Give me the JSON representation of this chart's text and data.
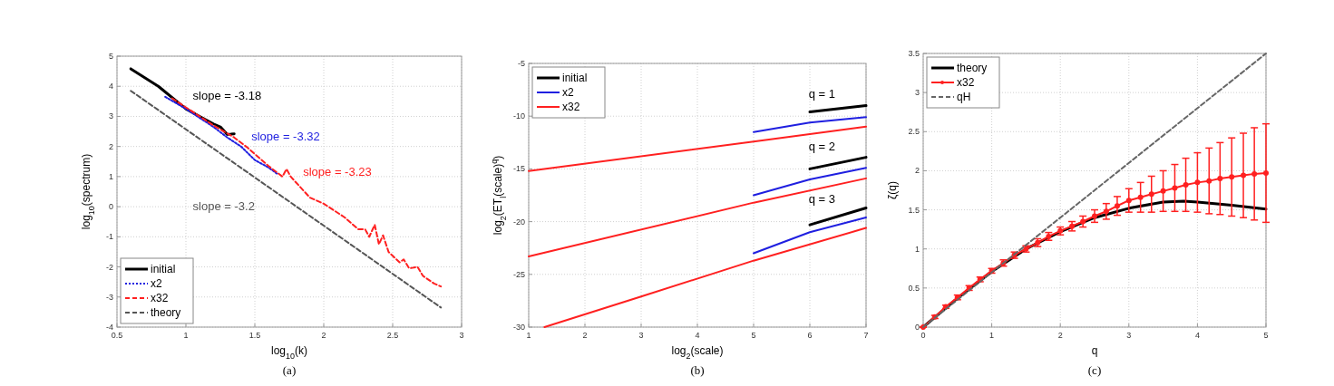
{
  "chart_data": [
    {
      "type": "line",
      "xlabel": "log$_{10}$(k)",
      "ylabel": "log$_{10}$(spectrum)",
      "xlim": [
        0.5,
        3
      ],
      "ylim": [
        -4,
        5
      ],
      "xticks": [
        0.5,
        1,
        1.5,
        2,
        2.5,
        3
      ],
      "yticks": [
        -4,
        -3,
        -2,
        -1,
        0,
        1,
        2,
        3,
        4,
        5
      ],
      "grid": true,
      "legend": "bottom left",
      "series": [
        {
          "name": "initial",
          "color": "#000000",
          "line_style": "solid",
          "x": [
            0.6,
            0.8,
            1.0,
            1.1,
            1.2,
            1.25,
            1.3,
            1.35
          ],
          "values": [
            4.58,
            4.0,
            3.25,
            3.0,
            2.75,
            2.65,
            2.4,
            2.42
          ]
        },
        {
          "name": "x2",
          "color": "#1f1fe0",
          "line_style": "dotted",
          "x": [
            0.85,
            1.0,
            1.2,
            1.3,
            1.4,
            1.5,
            1.6,
            1.66
          ],
          "values": [
            3.65,
            3.25,
            2.65,
            2.3,
            2.0,
            1.55,
            1.3,
            1.1
          ]
        },
        {
          "name": "x32",
          "color": "#ff2020",
          "line_style": "dashed",
          "x": [
            0.9,
            1.0,
            1.2,
            1.35,
            1.45,
            1.5,
            1.6,
            1.7,
            1.73,
            1.76,
            1.85,
            1.9,
            2.0,
            2.1,
            2.15,
            2.2,
            2.25,
            2.3,
            2.33,
            2.37,
            2.4,
            2.43,
            2.47,
            2.55,
            2.58,
            2.62,
            2.68,
            2.72,
            2.8,
            2.85
          ],
          "values": [
            3.6,
            3.3,
            2.7,
            2.3,
            1.95,
            1.75,
            1.35,
            1.0,
            1.25,
            1.0,
            0.55,
            0.3,
            0.1,
            -0.2,
            -0.35,
            -0.55,
            -0.75,
            -0.75,
            -1.0,
            -0.6,
            -1.25,
            -0.95,
            -1.5,
            -1.85,
            -1.75,
            -2.05,
            -2.0,
            -2.3,
            -2.55,
            -2.65
          ]
        },
        {
          "name": "theory",
          "color": "#555555",
          "line_style": "dashed",
          "x": [
            0.6,
            2.85
          ],
          "values": [
            3.85,
            -3.35
          ]
        }
      ],
      "annotations": [
        "slope = -3.18",
        "slope = -3.32",
        "slope = -3.23",
        "slope = -3.2",
        "(a)"
      ]
    },
    {
      "type": "line",
      "xlabel": "log$_{2}$(scale)",
      "ylabel": "log$_{2}$(ET$_{l}$(scale)$^{q}$)",
      "xlim": [
        1,
        7
      ],
      "ylim": [
        -30,
        -5
      ],
      "xticks": [
        1,
        2,
        3,
        4,
        5,
        6,
        7
      ],
      "yticks": [
        -30,
        -25,
        -20,
        -15,
        -10,
        -5
      ],
      "grid": true,
      "legend": "top left",
      "series": [
        {
          "name": "initial",
          "color": "#000000",
          "x": [
            6,
            7
          ],
          "values": [
            -9.6,
            -9.0
          ]
        },
        {
          "color": "#000000",
          "x": [
            6,
            7
          ],
          "values": [
            -15.0,
            -13.9
          ]
        },
        {
          "color": "#000000",
          "x": [
            6,
            7
          ],
          "values": [
            -20.3,
            -18.7
          ]
        },
        {
          "name": "x2",
          "color": "#1f1fe0",
          "x": [
            5,
            6,
            7
          ],
          "values": [
            -11.5,
            -10.6,
            -10.1
          ]
        },
        {
          "color": "#1f1fe0",
          "x": [
            5,
            6,
            7
          ],
          "values": [
            -17.5,
            -16.0,
            -14.9
          ]
        },
        {
          "color": "#1f1fe0",
          "x": [
            5,
            6,
            7
          ],
          "values": [
            -23.0,
            -21.0,
            -19.6
          ]
        },
        {
          "name": "x32",
          "color": "#ff2020",
          "x": [
            1,
            5,
            7
          ],
          "values": [
            -15.2,
            -12.4,
            -11.0
          ]
        },
        {
          "color": "#ff2020",
          "x": [
            1,
            5,
            7
          ],
          "values": [
            -23.3,
            -18.2,
            -15.9
          ]
        },
        {
          "color": "#ff2020",
          "x": [
            1.28,
            3,
            5,
            7
          ],
          "values": [
            -30,
            -27.1,
            -23.7,
            -20.6
          ]
        }
      ],
      "annotations": [
        "q = 1",
        "q = 2",
        "q = 3",
        "(b)"
      ]
    },
    {
      "type": "line",
      "xlabel": "q",
      "ylabel": "ζ(q)",
      "xlim": [
        0,
        5
      ],
      "ylim": [
        0,
        3.5
      ],
      "xticks": [
        0,
        1,
        2,
        3,
        4,
        5
      ],
      "yticks": [
        0,
        0.5,
        1,
        1.5,
        2,
        2.5,
        3,
        3.5
      ],
      "grid": true,
      "legend": "top left",
      "series": [
        {
          "name": "theory",
          "color": "#000000",
          "x": [
            0,
            0.5,
            1,
            1.5,
            2,
            2.5,
            3,
            3.5,
            3.8,
            4,
            4.5,
            5
          ],
          "values": [
            0,
            0.37,
            0.71,
            1.0,
            1.22,
            1.4,
            1.52,
            1.6,
            1.61,
            1.6,
            1.56,
            1.51
          ]
        },
        {
          "name": "x32",
          "color": "#ff2020",
          "marker": "circle",
          "x": [
            0,
            0.17,
            0.33,
            0.5,
            0.67,
            0.83,
            1,
            1.17,
            1.33,
            1.5,
            1.67,
            1.83,
            2,
            2.17,
            2.33,
            2.5,
            2.67,
            2.83,
            3,
            3.17,
            3.33,
            3.5,
            3.67,
            3.83,
            4,
            4.17,
            4.33,
            4.5,
            4.67,
            4.83,
            5
          ],
          "values": [
            0,
            0.13,
            0.26,
            0.38,
            0.5,
            0.61,
            0.72,
            0.82,
            0.92,
            1.0,
            1.08,
            1.16,
            1.23,
            1.29,
            1.35,
            1.42,
            1.48,
            1.55,
            1.62,
            1.66,
            1.7,
            1.74,
            1.78,
            1.82,
            1.85,
            1.87,
            1.9,
            1.92,
            1.94,
            1.96,
            1.97
          ],
          "errors": [
            0,
            0.02,
            0.02,
            0.03,
            0.03,
            0.03,
            0.03,
            0.04,
            0.04,
            0.04,
            0.05,
            0.05,
            0.05,
            0.06,
            0.07,
            0.08,
            0.1,
            0.12,
            0.15,
            0.19,
            0.23,
            0.26,
            0.3,
            0.34,
            0.38,
            0.42,
            0.46,
            0.5,
            0.54,
            0.59,
            0.63
          ]
        },
        {
          "name": "qH",
          "color": "#666666",
          "line_style": "dashed",
          "x": [
            0,
            5
          ],
          "values": [
            0,
            3.5
          ]
        }
      ],
      "annotations": [
        "(c)"
      ]
    }
  ]
}
